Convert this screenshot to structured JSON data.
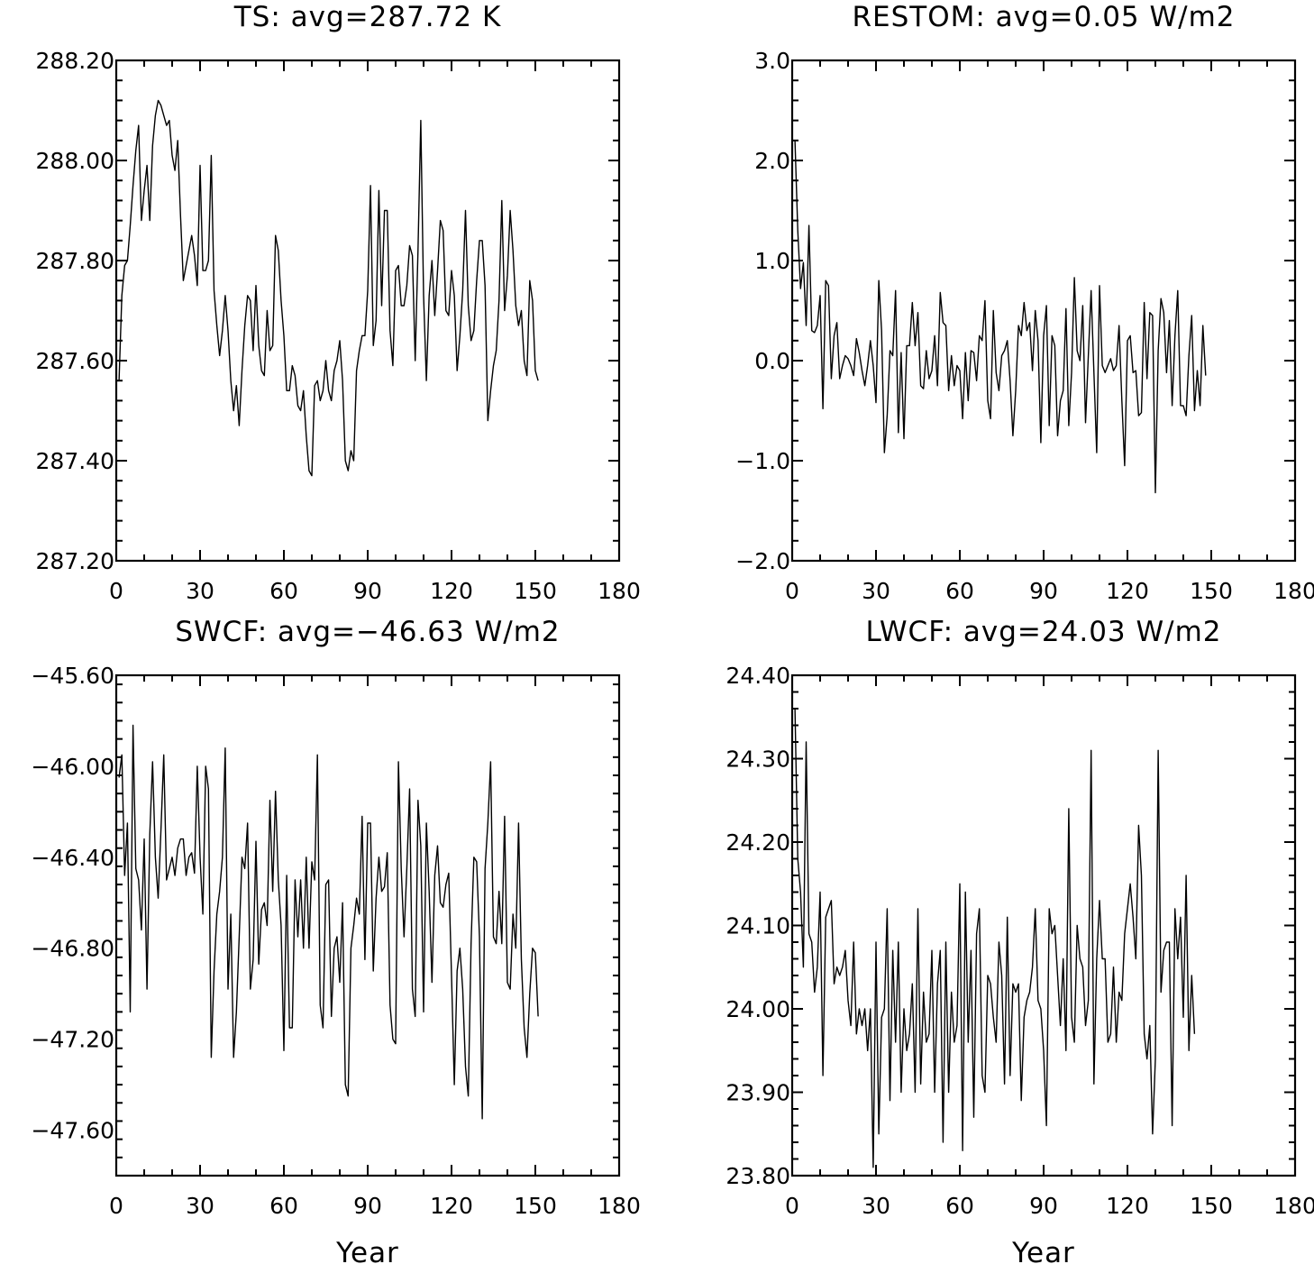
{
  "chart_data": [
    {
      "type": "line",
      "title": "TS: avg=287.72 K",
      "xlabel": "",
      "ylabel": "",
      "xlim": [
        0,
        180
      ],
      "ylim": [
        287.2,
        288.2
      ],
      "xticks": [
        "0",
        "30",
        "60",
        "90",
        "120",
        "150",
        "180"
      ],
      "yticks": [
        "287.20",
        "287.40",
        "287.60",
        "287.80",
        "288.00",
        "288.20"
      ],
      "x_start": 1,
      "x_step": 1,
      "series": [
        {
          "values": [
            287.56,
            287.73,
            287.79,
            287.8,
            287.87,
            287.95,
            288.02,
            288.07,
            287.88,
            287.94,
            287.99,
            287.88,
            288.03,
            288.09,
            288.12,
            288.11,
            288.09,
            288.07,
            288.08,
            288.01,
            287.98,
            288.04,
            287.89,
            287.76,
            287.79,
            287.82,
            287.85,
            287.81,
            287.75,
            287.99,
            287.78,
            287.78,
            287.8,
            288.01,
            287.74,
            287.67,
            287.61,
            287.66,
            287.73,
            287.66,
            287.56,
            287.5,
            287.55,
            287.47,
            287.58,
            287.67,
            287.73,
            287.72,
            287.62,
            287.75,
            287.63,
            287.58,
            287.57,
            287.7,
            287.62,
            287.63,
            287.85,
            287.82,
            287.72,
            287.65,
            287.54,
            287.54,
            287.59,
            287.57,
            287.51,
            287.5,
            287.54,
            287.45,
            287.38,
            287.37,
            287.55,
            287.56,
            287.52,
            287.54,
            287.6,
            287.54,
            287.52,
            287.58,
            287.6,
            287.64,
            287.56,
            287.4,
            287.38,
            287.42,
            287.4,
            287.58,
            287.62,
            287.65,
            287.65,
            287.74,
            287.95,
            287.63,
            287.68,
            287.94,
            287.71,
            287.9,
            287.9,
            287.66,
            287.59,
            287.78,
            287.79,
            287.71,
            287.71,
            287.75,
            287.83,
            287.81,
            287.6,
            287.82,
            288.08,
            287.73,
            287.56,
            287.73,
            287.8,
            287.69,
            287.78,
            287.88,
            287.86,
            287.7,
            287.69,
            287.78,
            287.73,
            287.58,
            287.65,
            287.74,
            287.9,
            287.71,
            287.64,
            287.66,
            287.76,
            287.84,
            287.84,
            287.75,
            287.48,
            287.54,
            287.59,
            287.62,
            287.72,
            287.92,
            287.7,
            287.77,
            287.9,
            287.82,
            287.71,
            287.67,
            287.7,
            287.6,
            287.57,
            287.76,
            287.72,
            287.58,
            287.56
          ]
        }
      ]
    },
    {
      "type": "line",
      "title": "RESTOM: avg=0.05 W/m2",
      "xlabel": "",
      "ylabel": "",
      "xlim": [
        0,
        180
      ],
      "ylim": [
        -2.0,
        3.0
      ],
      "xticks": [
        "0",
        "30",
        "60",
        "90",
        "120",
        "150",
        "180"
      ],
      "yticks": [
        "−2.0",
        "−1.0",
        "0.0",
        "1.0",
        "2.0",
        "3.0"
      ],
      "x_start": 1,
      "x_step": 1,
      "series": [
        {
          "values": [
            2.2,
            1.3,
            0.72,
            0.98,
            0.35,
            1.35,
            0.3,
            0.28,
            0.35,
            0.65,
            -0.48,
            0.8,
            0.75,
            -0.18,
            0.25,
            0.38,
            -0.18,
            -0.05,
            0.05,
            0.02,
            -0.05,
            -0.15,
            0.22,
            0.08,
            -0.1,
            -0.25,
            -0.05,
            0.2,
            -0.05,
            -0.42,
            0.8,
            0.3,
            -0.92,
            -0.55,
            0.1,
            0.05,
            0.7,
            -0.72,
            0.08,
            -0.78,
            0.15,
            0.15,
            0.58,
            0.15,
            0.48,
            -0.25,
            -0.28,
            0.1,
            -0.18,
            -0.1,
            0.25,
            -0.25,
            0.68,
            0.38,
            0.35,
            -0.3,
            0.05,
            -0.25,
            -0.05,
            -0.1,
            -0.58,
            0.08,
            -0.4,
            0.1,
            0.08,
            -0.2,
            0.25,
            0.2,
            0.6,
            -0.4,
            -0.58,
            0.5,
            -0.12,
            -0.3,
            0.05,
            0.1,
            0.2,
            -0.2,
            -0.75,
            -0.3,
            0.35,
            0.25,
            0.58,
            0.3,
            0.38,
            -0.1,
            0.5,
            0.2,
            -0.82,
            0.25,
            0.55,
            -0.65,
            0.25,
            0.15,
            -0.75,
            -0.4,
            -0.3,
            0.52,
            -0.65,
            -0.12,
            0.83,
            0.1,
            0.0,
            0.55,
            -0.62,
            0.05,
            0.7,
            -0.12,
            -0.92,
            0.75,
            -0.05,
            -0.12,
            -0.05,
            0.02,
            -0.1,
            -0.05,
            0.35,
            -0.4,
            -1.05,
            0.2,
            0.25,
            -0.12,
            -0.1,
            -0.55,
            -0.52,
            0.58,
            -0.18,
            0.48,
            0.45,
            -1.32,
            0.1,
            0.62,
            0.48,
            -0.12,
            0.4,
            -0.45,
            0.25,
            0.7,
            -0.45,
            -0.45,
            -0.55,
            0.05,
            0.45,
            -0.5,
            -0.1,
            -0.45,
            0.35,
            -0.15
          ]
        }
      ]
    },
    {
      "type": "line",
      "title": "SWCF: avg=−46.63 W/m2",
      "xlabel": "Year",
      "ylabel": "",
      "xlim": [
        0,
        180
      ],
      "ylim": [
        -47.8,
        -45.6
      ],
      "xticks": [
        "0",
        "30",
        "60",
        "90",
        "120",
        "150",
        "180"
      ],
      "yticks": [
        "−45.60",
        "−46.00",
        "−46.40",
        "−46.80",
        "−47.20",
        "−47.60"
      ],
      "x_start": 1,
      "x_step": 1,
      "series": [
        {
          "values": [
            -46.05,
            -45.95,
            -46.48,
            -46.25,
            -47.08,
            -45.82,
            -46.45,
            -46.5,
            -46.72,
            -46.32,
            -46.98,
            -46.3,
            -45.98,
            -46.4,
            -46.58,
            -46.28,
            -45.95,
            -46.5,
            -46.45,
            -46.4,
            -46.48,
            -46.36,
            -46.32,
            -46.32,
            -46.48,
            -46.4,
            -46.38,
            -46.47,
            -46.0,
            -46.4,
            -46.65,
            -46.0,
            -46.1,
            -47.28,
            -46.9,
            -46.65,
            -46.55,
            -46.4,
            -45.92,
            -46.98,
            -46.65,
            -47.28,
            -47.08,
            -46.75,
            -46.4,
            -46.45,
            -46.25,
            -46.98,
            -46.85,
            -46.33,
            -46.87,
            -46.63,
            -46.6,
            -46.7,
            -46.15,
            -46.55,
            -46.11,
            -46.5,
            -46.7,
            -47.25,
            -46.48,
            -47.15,
            -47.15,
            -46.5,
            -46.75,
            -46.5,
            -46.8,
            -46.4,
            -46.8,
            -46.42,
            -46.5,
            -45.95,
            -47.05,
            -47.15,
            -46.52,
            -46.5,
            -47.1,
            -46.8,
            -46.75,
            -46.95,
            -46.6,
            -47.4,
            -47.45,
            -46.8,
            -46.7,
            -46.58,
            -46.65,
            -46.22,
            -46.85,
            -46.25,
            -46.25,
            -46.9,
            -46.58,
            -46.4,
            -46.55,
            -46.53,
            -46.38,
            -47.05,
            -47.2,
            -47.22,
            -45.98,
            -46.45,
            -46.75,
            -46.45,
            -46.1,
            -46.98,
            -47.1,
            -46.15,
            -46.35,
            -47.08,
            -46.25,
            -46.55,
            -46.95,
            -46.48,
            -46.35,
            -46.6,
            -46.62,
            -46.52,
            -46.47,
            -46.92,
            -47.4,
            -46.9,
            -46.8,
            -46.98,
            -47.32,
            -47.45,
            -46.78,
            -46.4,
            -46.42,
            -46.75,
            -47.55,
            -46.45,
            -46.25,
            -45.98,
            -46.75,
            -46.78,
            -46.55,
            -46.78,
            -46.22,
            -46.95,
            -46.98,
            -46.65,
            -46.8,
            -46.25,
            -46.85,
            -47.15,
            -47.28,
            -47.0,
            -46.8,
            -46.82,
            -47.1
          ]
        }
      ]
    },
    {
      "type": "line",
      "title": "LWCF: avg=24.03 W/m2",
      "xlabel": "Year",
      "ylabel": "",
      "xlim": [
        0,
        180
      ],
      "ylim": [
        23.8,
        24.4
      ],
      "xticks": [
        "0",
        "30",
        "60",
        "90",
        "120",
        "150",
        "180"
      ],
      "yticks": [
        "23.80",
        "23.90",
        "24.00",
        "24.10",
        "24.20",
        "24.30",
        "24.40"
      ],
      "x_start": 1,
      "x_step": 1,
      "series": [
        {
          "values": [
            24.36,
            24.18,
            24.14,
            24.05,
            24.32,
            24.09,
            24.08,
            24.02,
            24.05,
            24.14,
            23.92,
            24.11,
            24.12,
            24.13,
            24.03,
            24.05,
            24.04,
            24.05,
            24.07,
            24.01,
            23.98,
            24.08,
            23.97,
            24.0,
            23.98,
            24.0,
            23.95,
            24.0,
            23.81,
            24.08,
            23.85,
            23.99,
            24.0,
            24.12,
            23.89,
            24.07,
            23.96,
            24.08,
            23.9,
            24.0,
            23.95,
            23.97,
            24.03,
            23.9,
            24.12,
            23.91,
            24.02,
            23.96,
            23.97,
            24.07,
            23.9,
            24.03,
            24.07,
            23.84,
            24.08,
            23.9,
            24.02,
            23.96,
            23.98,
            24.15,
            23.83,
            24.14,
            23.96,
            24.07,
            23.87,
            24.09,
            24.12,
            23.92,
            23.9,
            24.04,
            24.03,
            23.99,
            23.96,
            24.08,
            24.04,
            23.91,
            24.11,
            23.92,
            24.03,
            24.02,
            24.03,
            23.89,
            23.99,
            24.01,
            24.02,
            24.05,
            24.12,
            24.01,
            24.0,
            23.95,
            23.86,
            24.12,
            24.09,
            24.1,
            24.04,
            23.98,
            24.06,
            23.95,
            24.24,
            23.99,
            23.96,
            24.1,
            24.06,
            24.05,
            23.98,
            24.01,
            24.31,
            23.91,
            24.06,
            24.13,
            24.06,
            24.06,
            23.96,
            23.97,
            24.05,
            23.96,
            24.02,
            24.01,
            24.09,
            24.12,
            24.15,
            24.11,
            24.06,
            24.22,
            24.16,
            23.97,
            23.94,
            23.98,
            23.85,
            23.94,
            24.31,
            24.02,
            24.07,
            24.08,
            24.08,
            23.86,
            24.12,
            24.06,
            24.11,
            23.99,
            24.16,
            23.95,
            24.04,
            23.97
          ]
        }
      ]
    }
  ]
}
